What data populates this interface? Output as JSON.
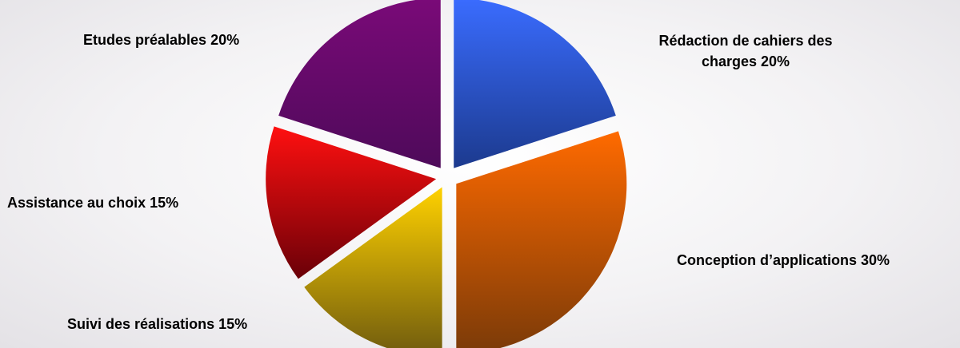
{
  "chart_data": {
    "type": "pie",
    "title": "",
    "legend": "none",
    "slices": [
      {
        "label": "Rédaction de cahiers des charges",
        "label_lines": [
          "Rédaction de cahiers des",
          "charges  20%"
        ],
        "value": 20,
        "colors": [
          "#3a6cff",
          "#1c3a8e"
        ]
      },
      {
        "label": "Conception d’applications",
        "label_lines": [
          "Conception d’applications  30%"
        ],
        "value": 30,
        "colors": [
          "#ff6a00",
          "#7a3a08"
        ]
      },
      {
        "label": "Suivi des réalisations",
        "label_lines": [
          "Suivi des réalisations  15%"
        ],
        "value": 15,
        "colors": [
          "#ffd100",
          "#6e5a0e"
        ]
      },
      {
        "label": "Assistance au choix",
        "label_lines": [
          "Assistance au choix  15%"
        ],
        "value": 15,
        "colors": [
          "#ff1010",
          "#6a0008"
        ]
      },
      {
        "label": "Etudes préalables",
        "label_lines": [
          "Etudes préalables  20%"
        ],
        "value": 20,
        "colors": [
          "#7a0a78",
          "#4e0a5a"
        ]
      }
    ]
  }
}
